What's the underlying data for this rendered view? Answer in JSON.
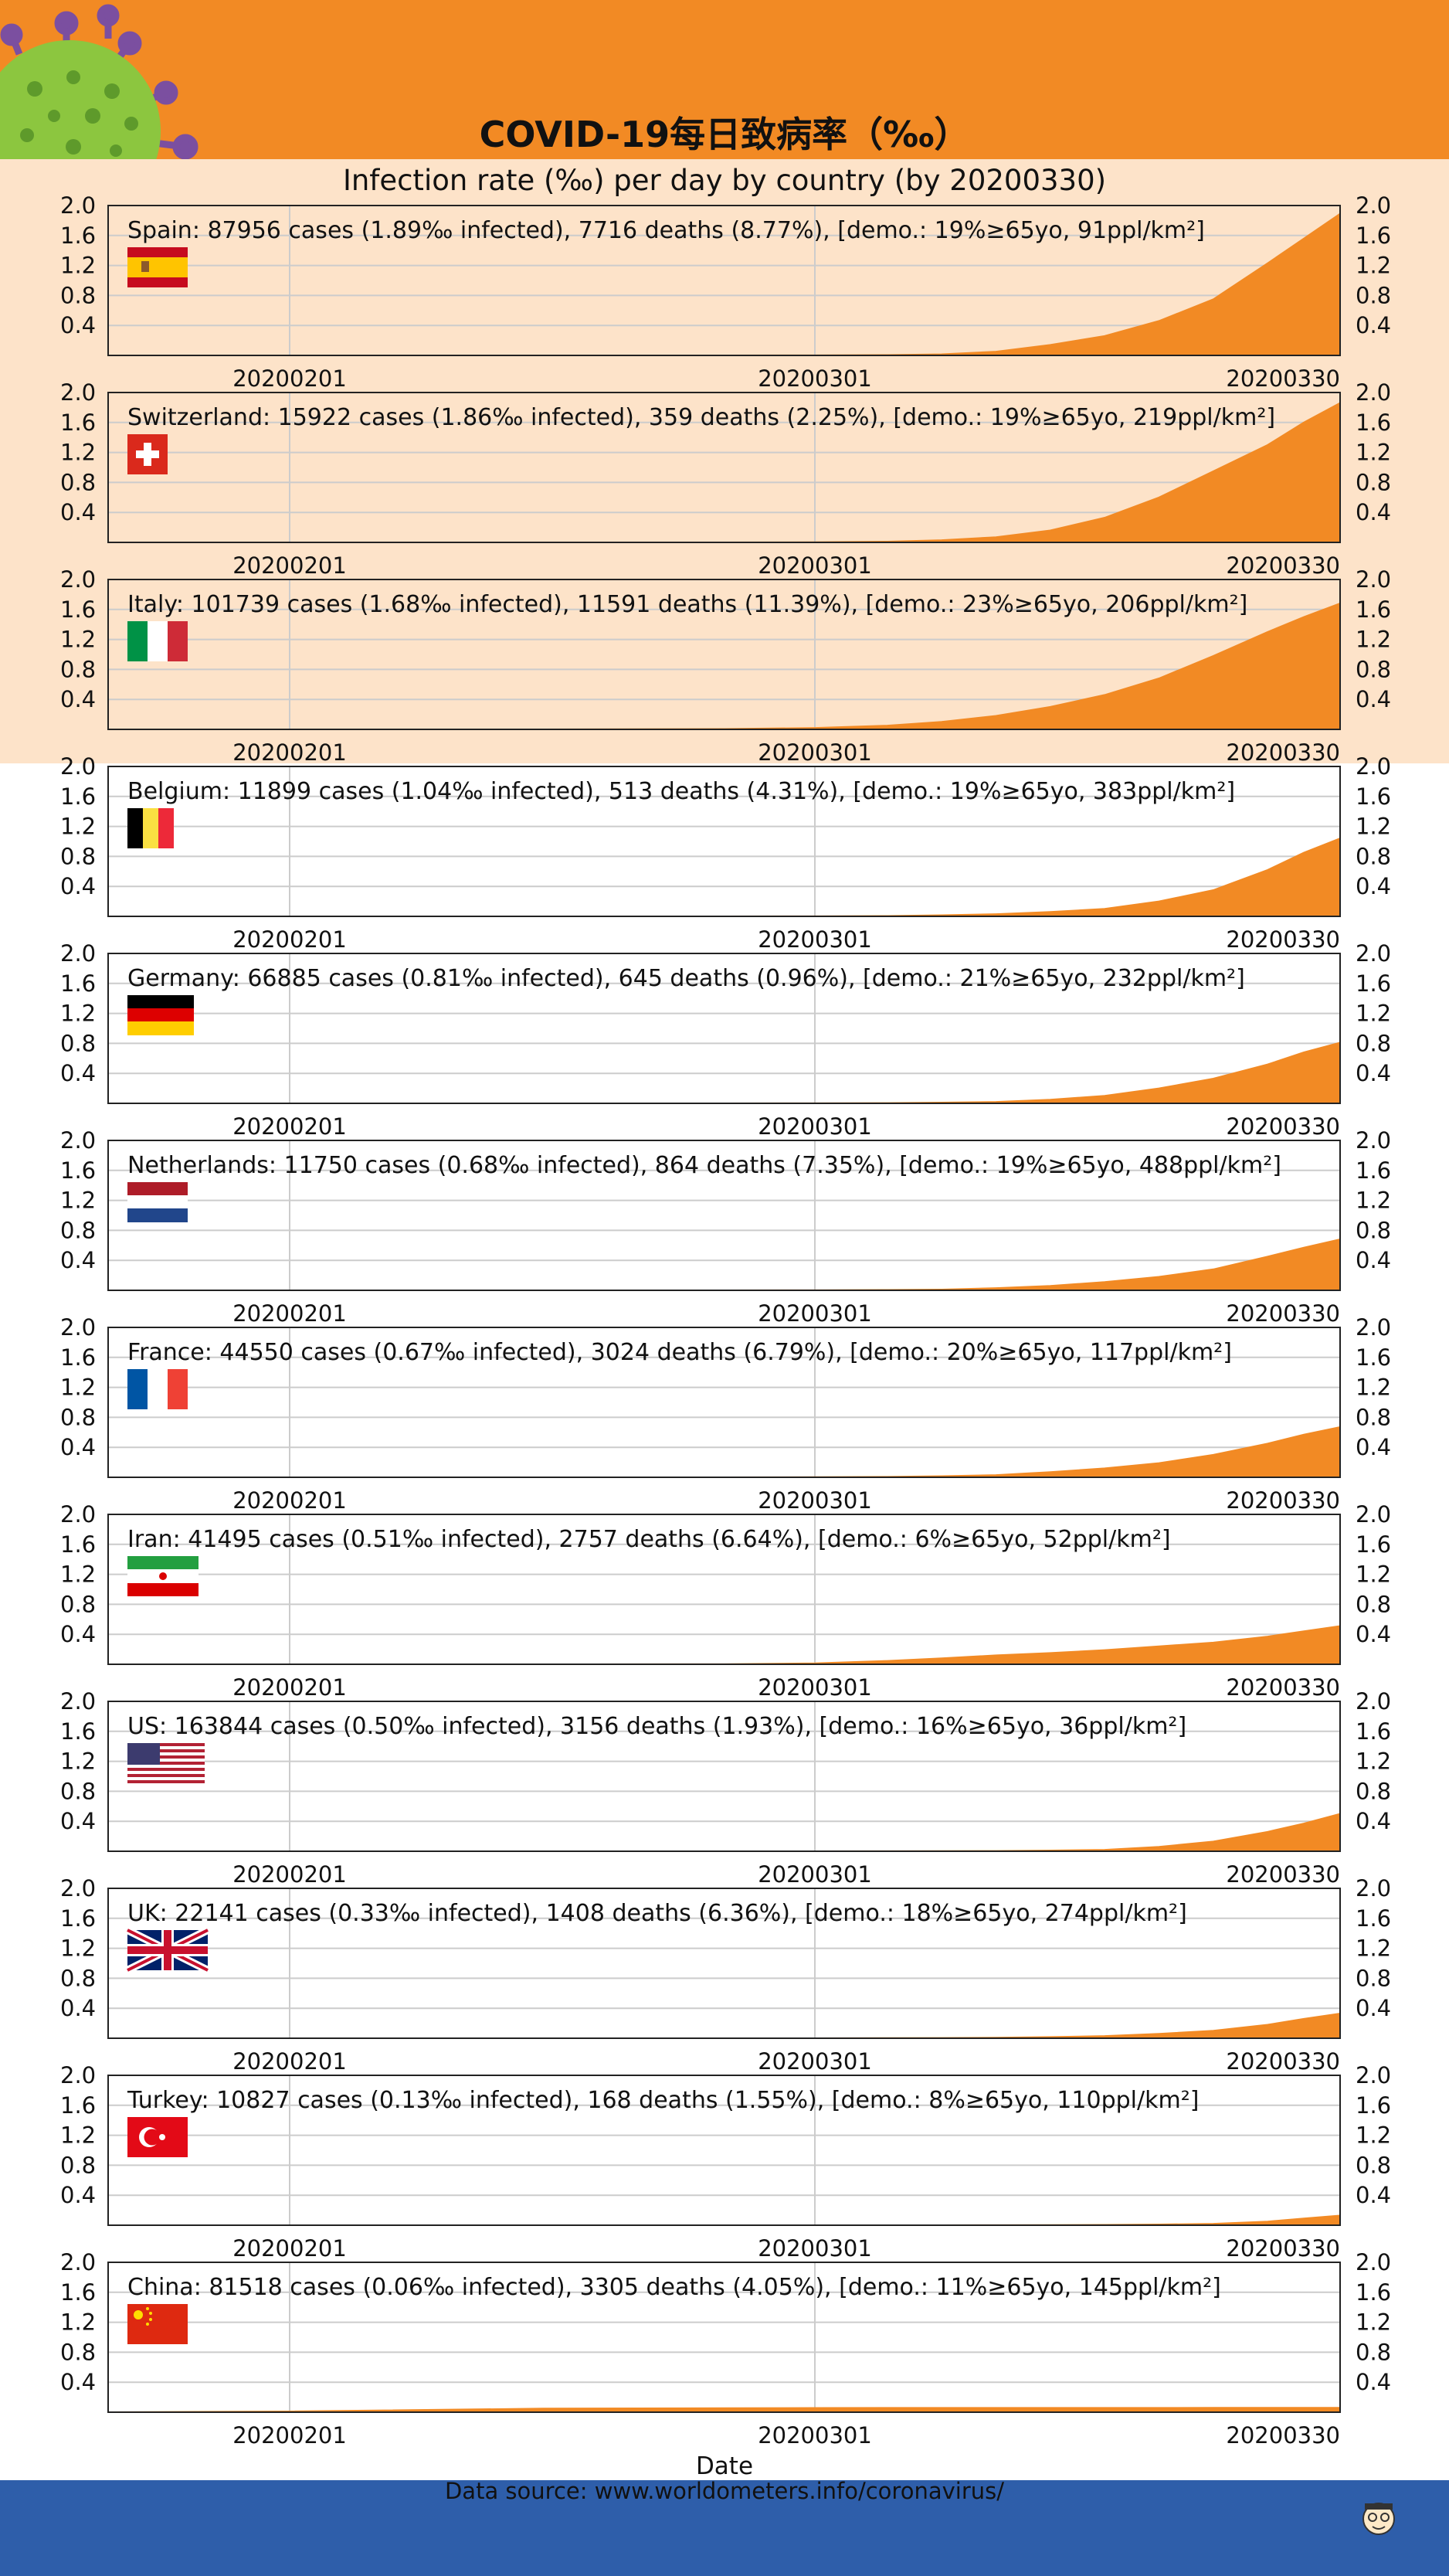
{
  "title": "COVID-19每日致病率（‰）",
  "subtitle": "Infection rate (‰) per day by country (by 20200330)",
  "x_axis_label": "Date",
  "source": "Data source: www.worldometers.info/coronavirus/",
  "colors": {
    "header": "#f28a24",
    "highlight": "#fde3c9",
    "fill": "#f28a24",
    "footer": "#2e5eaa"
  },
  "chart_data": {
    "type": "area",
    "ylim": [
      0,
      2.0
    ],
    "yticks": [
      "2.0",
      "1.6",
      "1.2",
      "0.8",
      "0.4"
    ],
    "xticks": [
      "20200201",
      "20200301",
      "20200330"
    ],
    "grid": true,
    "x_dates": [
      "2020-01-22",
      "2020-02-01",
      "2020-02-15",
      "2020-02-25",
      "2020-03-01",
      "2020-03-05",
      "2020-03-08",
      "2020-03-11",
      "2020-03-14",
      "2020-03-17",
      "2020-03-20",
      "2020-03-23",
      "2020-03-26",
      "2020-03-28",
      "2020-03-30"
    ],
    "series": [
      {
        "label": "Spain: 87956 cases (1.89‰ infected), 7716 deaths (8.77%), [demo.: 19%≥65yo, 91ppl/km²]",
        "flag": "spain-flag-icon",
        "values": [
          0,
          0,
          0,
          0,
          0.001,
          0.005,
          0.015,
          0.05,
          0.14,
          0.26,
          0.46,
          0.75,
          1.23,
          1.56,
          1.89
        ]
      },
      {
        "label": "Switzerland: 15922 cases (1.86‰ infected), 359 deaths (2.25%), [demo.: 19%≥65yo, 219ppl/km²]",
        "flag": "switzerland-flag-icon",
        "values": [
          0,
          0,
          0,
          0,
          0.002,
          0.01,
          0.03,
          0.07,
          0.16,
          0.33,
          0.6,
          0.95,
          1.3,
          1.6,
          1.86
        ]
      },
      {
        "label": "Italy: 101739 cases (1.68‰ infected), 11591 deaths (11.39%), [demo.: 23%≥65yo, 206ppl/km²]",
        "flag": "italy-flag-icon",
        "values": [
          0,
          0,
          0,
          0.005,
          0.02,
          0.05,
          0.1,
          0.18,
          0.3,
          0.46,
          0.68,
          0.98,
          1.3,
          1.5,
          1.68
        ]
      },
      {
        "label": "Belgium: 11899 cases (1.04‰ infected), 513 deaths (4.31%), [demo.: 19%≥65yo, 383ppl/km²]",
        "flag": "belgium-flag-icon",
        "values": [
          0,
          0,
          0,
          0,
          0.001,
          0.005,
          0.015,
          0.03,
          0.06,
          0.1,
          0.2,
          0.35,
          0.62,
          0.85,
          1.04
        ]
      },
      {
        "label": "Germany: 66885 cases (0.81‰ infected), 645 deaths (0.96%), [demo.: 21%≥65yo, 232ppl/km²]",
        "flag": "germany-flag-icon",
        "values": [
          0,
          0,
          0,
          0,
          0.001,
          0.004,
          0.01,
          0.02,
          0.05,
          0.1,
          0.2,
          0.33,
          0.52,
          0.68,
          0.81
        ]
      },
      {
        "label": "Netherlands: 11750 cases (0.68‰ infected), 864 deaths (7.35%), [demo.: 19%≥65yo, 488ppl/km²]",
        "flag": "netherlands-flag-icon",
        "values": [
          0,
          0,
          0,
          0,
          0.001,
          0.005,
          0.01,
          0.03,
          0.06,
          0.11,
          0.18,
          0.28,
          0.45,
          0.57,
          0.68
        ]
      },
      {
        "label": "France: 44550 cases (0.67‰ infected), 3024 deaths (6.79%), [demo.: 20%≥65yo, 117ppl/km²]",
        "flag": "france-flag-icon",
        "values": [
          0,
          0,
          0,
          0,
          0.002,
          0.006,
          0.015,
          0.03,
          0.07,
          0.12,
          0.19,
          0.3,
          0.45,
          0.57,
          0.67
        ]
      },
      {
        "label": "Iran: 41495 cases (0.51‰ infected), 2757 deaths (6.64%), [demo.: 6%≥65yo, 52ppl/km²]",
        "flag": "iran-flag-icon",
        "values": [
          0,
          0,
          0,
          0.001,
          0.012,
          0.045,
          0.08,
          0.12,
          0.15,
          0.19,
          0.24,
          0.29,
          0.37,
          0.44,
          0.51
        ]
      },
      {
        "label": "US: 163844 cases (0.50‰ infected), 3156 deaths (1.93%), [demo.: 16%≥65yo, 36ppl/km²]",
        "flag": "us-flag-icon",
        "values": [
          0,
          0,
          0,
          0,
          0,
          0.001,
          0.002,
          0.004,
          0.01,
          0.02,
          0.06,
          0.13,
          0.26,
          0.37,
          0.5
        ]
      },
      {
        "label": "UK: 22141 cases (0.33‰ infected), 1408 deaths (6.36%), [demo.: 18%≥65yo, 274ppl/km²]",
        "flag": "uk-flag-icon",
        "values": [
          0,
          0,
          0,
          0,
          0,
          0.002,
          0.004,
          0.007,
          0.017,
          0.03,
          0.06,
          0.1,
          0.18,
          0.26,
          0.33
        ]
      },
      {
        "label": "Turkey: 10827 cases (0.13‰ infected), 168 deaths (1.55%), [demo.: 8%≥65yo, 110ppl/km²]",
        "flag": "turkey-flag-icon",
        "values": [
          0,
          0,
          0,
          0,
          0,
          0,
          0,
          0.001,
          0.002,
          0.005,
          0.01,
          0.02,
          0.05,
          0.09,
          0.13
        ]
      },
      {
        "label": "China: 81518 cases (0.06‰ infected), 3305 deaths (4.05%), [demo.: 11%≥65yo, 145ppl/km²]",
        "flag": "china-flag-icon",
        "values": [
          0,
          0.01,
          0.048,
          0.055,
          0.057,
          0.058,
          0.058,
          0.058,
          0.058,
          0.058,
          0.058,
          0.059,
          0.059,
          0.059,
          0.06
        ]
      }
    ]
  }
}
